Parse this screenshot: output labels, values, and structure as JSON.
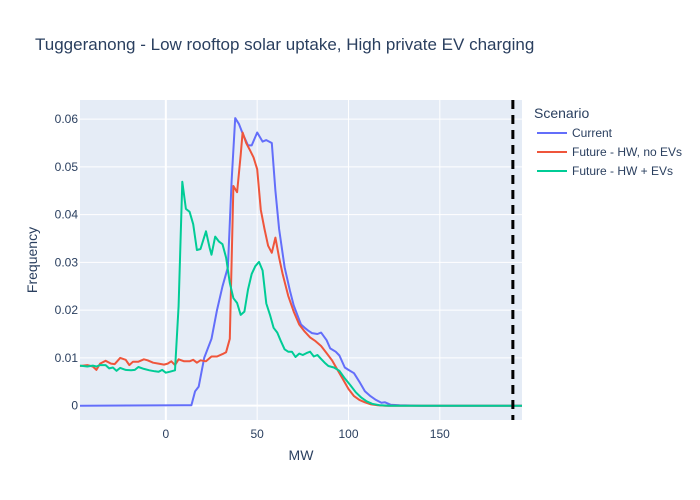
{
  "chart_data": {
    "type": "line",
    "title": "Tuggeranong - Low rooftop solar uptake, High private EV charging",
    "xlabel": "MW",
    "ylabel": "Frequency",
    "xlim": [
      -47,
      195
    ],
    "ylim": [
      -0.003,
      0.064
    ],
    "x_ticks": [
      0,
      50,
      100,
      150
    ],
    "y_ticks": [
      0,
      0.01,
      0.02,
      0.03,
      0.04,
      0.05,
      0.06
    ],
    "x_tick_labels": [
      "0",
      "50",
      "100",
      "150"
    ],
    "y_tick_labels": [
      "0",
      "0.01",
      "0.02",
      "0.03",
      "0.04",
      "0.05",
      "0.06"
    ],
    "grid": true,
    "legend": {
      "title": "Scenario",
      "position": "right"
    },
    "reference_line": {
      "x": 190,
      "style": "dashed",
      "color": "#000000"
    },
    "series": [
      {
        "name": "Current",
        "color": "#636efa",
        "points": [
          [
            -47,
            0.0
          ],
          [
            10,
            0.0001
          ],
          [
            14,
            0.0001
          ],
          [
            16,
            0.003
          ],
          [
            18,
            0.004
          ],
          [
            21,
            0.01
          ],
          [
            25,
            0.014
          ],
          [
            28,
            0.02
          ],
          [
            31,
            0.025
          ],
          [
            34,
            0.029
          ],
          [
            36,
            0.047
          ],
          [
            38,
            0.0602
          ],
          [
            40,
            0.059
          ],
          [
            42,
            0.057
          ],
          [
            45,
            0.0545
          ],
          [
            47,
            0.0545
          ],
          [
            50,
            0.0572
          ],
          [
            53,
            0.0553
          ],
          [
            55,
            0.0556
          ],
          [
            58,
            0.055
          ],
          [
            60,
            0.045
          ],
          [
            62,
            0.037
          ],
          [
            65,
            0.029
          ],
          [
            68,
            0.024
          ],
          [
            70,
            0.021
          ],
          [
            72,
            0.019
          ],
          [
            74,
            0.017
          ],
          [
            76,
            0.0163
          ],
          [
            78,
            0.0157
          ],
          [
            80,
            0.0152
          ],
          [
            83,
            0.015
          ],
          [
            85,
            0.0153
          ],
          [
            88,
            0.0137
          ],
          [
            90,
            0.012
          ],
          [
            93,
            0.0113
          ],
          [
            95,
            0.0105
          ],
          [
            98,
            0.008
          ],
          [
            100,
            0.0075
          ],
          [
            103,
            0.0068
          ],
          [
            106,
            0.005
          ],
          [
            109,
            0.003
          ],
          [
            112,
            0.002
          ],
          [
            115,
            0.0012
          ],
          [
            118,
            0.0006
          ],
          [
            120,
            0.0007
          ],
          [
            123,
            0.0002
          ],
          [
            128,
            0.0001
          ],
          [
            140,
            0.0
          ],
          [
            195,
            0.0
          ]
        ]
      },
      {
        "name": "Future - HW, no EVs",
        "color": "#ef553b",
        "points": [
          [
            -47,
            0.0083
          ],
          [
            -43,
            0.0085
          ],
          [
            -40,
            0.0082
          ],
          [
            -38,
            0.0075
          ],
          [
            -36,
            0.0088
          ],
          [
            -33,
            0.0094
          ],
          [
            -30,
            0.0088
          ],
          [
            -28,
            0.0087
          ],
          [
            -25,
            0.01
          ],
          [
            -22,
            0.0096
          ],
          [
            -20,
            0.0085
          ],
          [
            -18,
            0.0092
          ],
          [
            -15,
            0.0092
          ],
          [
            -12,
            0.0097
          ],
          [
            -10,
            0.0095
          ],
          [
            -7,
            0.009
          ],
          [
            -4,
            0.0088
          ],
          [
            -1,
            0.0086
          ],
          [
            1,
            0.0088
          ],
          [
            3,
            0.0093
          ],
          [
            5,
            0.0085
          ],
          [
            7,
            0.0097
          ],
          [
            10,
            0.0093
          ],
          [
            13,
            0.0093
          ],
          [
            15,
            0.0096
          ],
          [
            17,
            0.009
          ],
          [
            19,
            0.0095
          ],
          [
            22,
            0.0093
          ],
          [
            25,
            0.0103
          ],
          [
            28,
            0.0103
          ],
          [
            31,
            0.0108
          ],
          [
            33,
            0.0112
          ],
          [
            35,
            0.014
          ],
          [
            37,
            0.046
          ],
          [
            39,
            0.0447
          ],
          [
            41,
            0.0525
          ],
          [
            42,
            0.0572
          ],
          [
            44,
            0.055
          ],
          [
            46,
            0.0535
          ],
          [
            48,
            0.052
          ],
          [
            50,
            0.0495
          ],
          [
            52,
            0.041
          ],
          [
            54,
            0.037
          ],
          [
            56,
            0.0335
          ],
          [
            58,
            0.032
          ],
          [
            60,
            0.0352
          ],
          [
            62,
            0.031
          ],
          [
            64,
            0.0275
          ],
          [
            67,
            0.023
          ],
          [
            70,
            0.0197
          ],
          [
            73,
            0.017
          ],
          [
            76,
            0.0155
          ],
          [
            79,
            0.0143
          ],
          [
            82,
            0.0135
          ],
          [
            85,
            0.0125
          ],
          [
            88,
            0.011
          ],
          [
            91,
            0.0095
          ],
          [
            94,
            0.0075
          ],
          [
            97,
            0.0055
          ],
          [
            100,
            0.0035
          ],
          [
            103,
            0.002
          ],
          [
            106,
            0.0012
          ],
          [
            109,
            0.0007
          ],
          [
            112,
            0.0003
          ],
          [
            116,
            0.0001
          ],
          [
            120,
            0.0
          ],
          [
            195,
            0.0
          ]
        ]
      },
      {
        "name": "Future - HW + EVs",
        "color": "#00cc96",
        "points": [
          [
            -47,
            0.0084
          ],
          [
            -43,
            0.0082
          ],
          [
            -40,
            0.0084
          ],
          [
            -38,
            0.0082
          ],
          [
            -36,
            0.0085
          ],
          [
            -33,
            0.0085
          ],
          [
            -31,
            0.0078
          ],
          [
            -29,
            0.008
          ],
          [
            -27,
            0.0073
          ],
          [
            -25,
            0.0079
          ],
          [
            -22,
            0.0075
          ],
          [
            -19,
            0.0074
          ],
          [
            -17,
            0.0075
          ],
          [
            -15,
            0.0081
          ],
          [
            -12,
            0.0077
          ],
          [
            -9,
            0.0074
          ],
          [
            -6,
            0.0072
          ],
          [
            -4,
            0.0071
          ],
          [
            -2,
            0.0075
          ],
          [
            0,
            0.0069
          ],
          [
            2,
            0.0071
          ],
          [
            5,
            0.0074
          ],
          [
            7,
            0.0209
          ],
          [
            9,
            0.0469
          ],
          [
            11,
            0.0412
          ],
          [
            13,
            0.0406
          ],
          [
            15,
            0.038
          ],
          [
            17,
            0.0326
          ],
          [
            19,
            0.0328
          ],
          [
            21,
            0.0353
          ],
          [
            22,
            0.0365
          ],
          [
            24,
            0.033
          ],
          [
            25,
            0.0316
          ],
          [
            27,
            0.0354
          ],
          [
            29,
            0.0344
          ],
          [
            31,
            0.0338
          ],
          [
            33,
            0.031
          ],
          [
            35,
            0.0257
          ],
          [
            37,
            0.0225
          ],
          [
            39,
            0.0215
          ],
          [
            41,
            0.019
          ],
          [
            43,
            0.0197
          ],
          [
            45,
            0.0243
          ],
          [
            47,
            0.0276
          ],
          [
            49,
            0.0292
          ],
          [
            51,
            0.0301
          ],
          [
            53,
            0.0283
          ],
          [
            55,
            0.0214
          ],
          [
            57,
            0.019
          ],
          [
            59,
            0.0163
          ],
          [
            61,
            0.0153
          ],
          [
            63,
            0.0135
          ],
          [
            65,
            0.0118
          ],
          [
            67,
            0.0113
          ],
          [
            69,
            0.0113
          ],
          [
            71,
            0.0102
          ],
          [
            73,
            0.0109
          ],
          [
            75,
            0.0106
          ],
          [
            77,
            0.011
          ],
          [
            79,
            0.0113
          ],
          [
            81,
            0.0103
          ],
          [
            83,
            0.0106
          ],
          [
            85,
            0.0098
          ],
          [
            87,
            0.009
          ],
          [
            89,
            0.0083
          ],
          [
            92,
            0.008
          ],
          [
            95,
            0.0073
          ],
          [
            98,
            0.0057
          ],
          [
            101,
            0.0043
          ],
          [
            104,
            0.0028
          ],
          [
            107,
            0.0017
          ],
          [
            110,
            0.0009
          ],
          [
            113,
            0.0004
          ],
          [
            117,
            0.0001
          ],
          [
            122,
            0.0
          ],
          [
            195,
            0.0
          ]
        ]
      }
    ]
  }
}
